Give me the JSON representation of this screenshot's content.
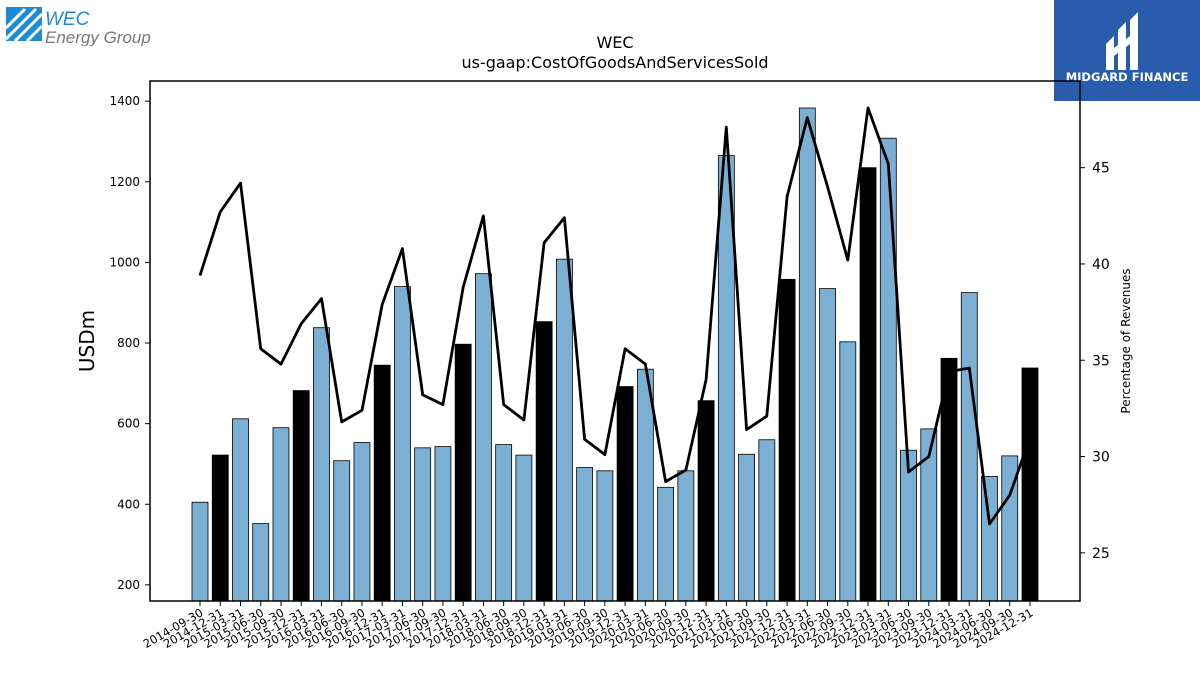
{
  "logos": {
    "left": {
      "line1": "WEC",
      "line2": "Energy Group",
      "color": "#1d8ad6",
      "text_color": "#777777"
    },
    "right": {
      "text": "MIDGARD FINANCE",
      "background": "#2a5cad"
    }
  },
  "chart_data": {
    "type": "bar",
    "title": "WEC",
    "subtitle": "us-gaap:CostOfGoodsAndServicesSold",
    "ylabel": "USDm",
    "y2label": "Percentage of Revenues",
    "ylim": [
      160,
      1450
    ],
    "y2lim": [
      22.5,
      49.5
    ],
    "yticks": [
      200,
      400,
      600,
      800,
      1000,
      1200,
      1400
    ],
    "y2ticks": [
      25,
      30,
      35,
      40,
      45
    ],
    "categories": [
      "2014-09-30",
      "2014-12-31",
      "2015-03-31",
      "2015-06-30",
      "2015-09-30",
      "2015-12-31",
      "2016-03-31",
      "2016-06-30",
      "2016-09-30",
      "2016-12-31",
      "2017-03-31",
      "2017-06-30",
      "2017-09-30",
      "2017-12-31",
      "2018-03-31",
      "2018-06-30",
      "2018-09-30",
      "2018-12-31",
      "2019-03-31",
      "2019-06-30",
      "2019-09-30",
      "2019-12-31",
      "2020-03-31",
      "2020-06-30",
      "2020-09-30",
      "2020-12-31",
      "2021-03-31",
      "2021-06-30",
      "2021-09-30",
      "2021-12-31",
      "2022-03-31",
      "2022-06-30",
      "2022-09-30",
      "2022-12-31",
      "2023-03-31",
      "2023-06-30",
      "2023-09-30",
      "2023-12-31",
      "2024-03-31",
      "2024-06-30",
      "2024-09-30",
      "2024-12-31"
    ],
    "series": [
      {
        "type": "bar",
        "axis": "left",
        "values": [
          405,
          522,
          612,
          352,
          590,
          682,
          838,
          508,
          553,
          745,
          940,
          540,
          543,
          797,
          972,
          548,
          522,
          853,
          1008,
          491,
          483,
          692,
          735,
          442,
          483,
          657,
          1265,
          524,
          560,
          958,
          1383,
          935,
          803,
          1235,
          1308,
          534,
          587,
          762,
          925,
          469,
          520,
          738
        ],
        "colors": {
          "annual": "#000000",
          "quarter": "#7bafd4"
        }
      },
      {
        "type": "line",
        "axis": "right",
        "values": [
          39.4,
          42.7,
          44.2,
          35.6,
          34.8,
          36.9,
          38.2,
          31.8,
          32.4,
          37.9,
          40.8,
          33.2,
          32.7,
          38.8,
          42.5,
          32.7,
          31.9,
          41.1,
          42.4,
          30.9,
          30.1,
          35.6,
          34.8,
          28.7,
          29.3,
          34.0,
          47.1,
          31.4,
          32.1,
          43.5,
          47.6,
          44.0,
          40.2,
          48.1,
          45.2,
          29.2,
          30.0,
          34.4,
          34.6,
          26.5,
          28.0,
          31.0
        ],
        "color": "#000000"
      }
    ],
    "grid": false,
    "legend": "none"
  }
}
